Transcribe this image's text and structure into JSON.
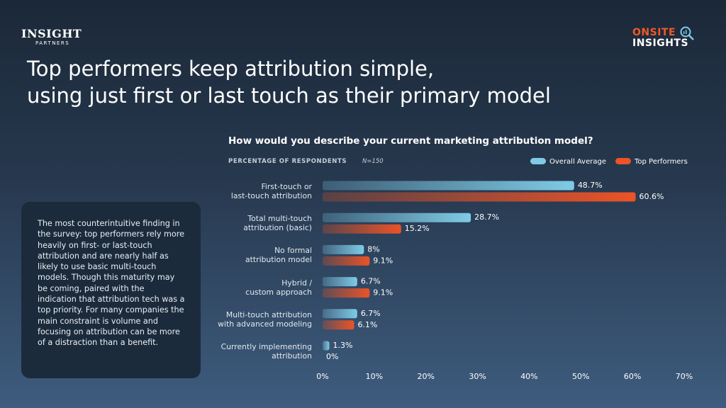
{
  "header": {
    "left_logo": {
      "name": "INSIGHT",
      "sub": "PARTNERS"
    },
    "right_logo": {
      "top": "ONSITE",
      "bottom": "INSIGHTS"
    },
    "headline": "Top performers keep attribution simple,\nusing just first or last touch as their primary model"
  },
  "sidebar": {
    "text": "The most counterintuitive finding in the survey: top performers rely more heavily on first- or last-touch attribution and are nearly half as likely to use basic multi-touch models. Though this maturity may be coming, paired with the indication that attribution tech was a top priority. For many companies the main constraint is volume and focusing on attribution can be more of a distraction than a benefit."
  },
  "chart_data": {
    "type": "hbar",
    "title": "How would you describe your current marketing attribution model?",
    "subtitle": "PERCENTAGE OF RESPONDENTS",
    "note": "N=150",
    "categories": [
      "First-touch or\nlast-touch attribution",
      "Total multi-touch\nattribution (basic)",
      "No formal\nattribution model",
      "Hybrid /\ncustom approach",
      "Multi-touch attribution\nwith advanced modeling",
      "Currently implementing\nattribution"
    ],
    "series": [
      {
        "name": "Overall Average",
        "color": "#7fcbe6",
        "values": [
          48.7,
          28.7,
          8,
          6.7,
          6.7,
          1.3
        ],
        "value_labels": [
          "48.7%",
          "28.7%",
          "8%",
          "6.7%",
          "6.7%",
          "1.3%"
        ]
      },
      {
        "name": "Top Performers",
        "color": "#ec5326",
        "values": [
          60.6,
          15.2,
          9.1,
          9.1,
          6.1,
          0
        ],
        "value_labels": [
          "60.6%",
          "15.2%",
          "9.1%",
          "9.1%",
          "6.1%",
          "0%"
        ]
      }
    ],
    "xlim": [
      0,
      70
    ],
    "xticks": [
      {
        "value": 0,
        "label": "0%"
      },
      {
        "value": 10,
        "label": "10%"
      },
      {
        "value": 20,
        "label": "20%"
      },
      {
        "value": 30,
        "label": "30%"
      },
      {
        "value": 40,
        "label": "40%"
      },
      {
        "value": 50,
        "label": "50%"
      },
      {
        "value": 60,
        "label": "60%"
      },
      {
        "value": 70,
        "label": "70%"
      }
    ],
    "legend": "top-right"
  }
}
